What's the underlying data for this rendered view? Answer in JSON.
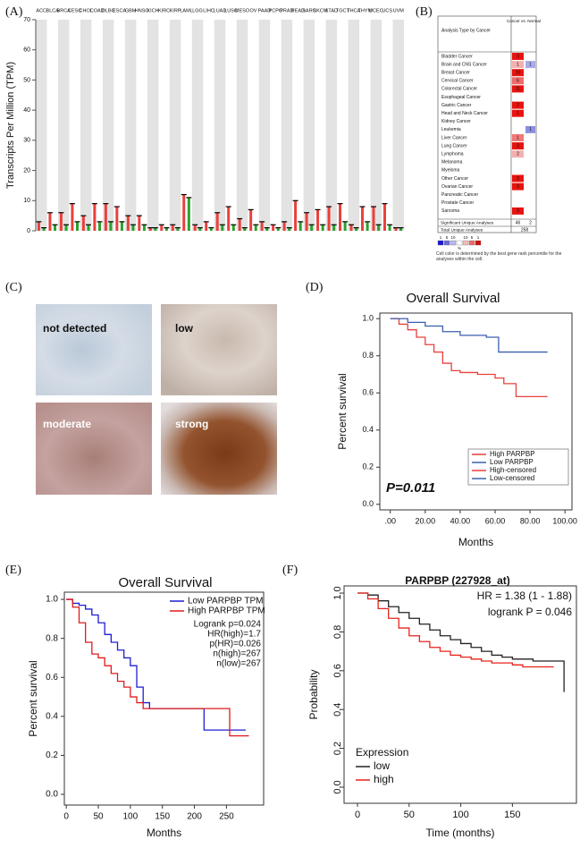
{
  "panel_labels": [
    "(A)",
    "(B)",
    "(C)",
    "(D)",
    "(E)",
    "(F)"
  ],
  "chart_data": [
    {
      "type": "dotplot",
      "ylabel": "Transcripts Per Million (TPM)",
      "categories": [
        "ACC",
        "BLCA",
        "BRCA",
        "CESC",
        "CHOL",
        "COAD",
        "DLBC",
        "ESCA",
        "GBM",
        "HNSC",
        "KICH",
        "KIRC",
        "KIRP",
        "LAML",
        "LGG",
        "LIHC",
        "LUAD",
        "LUSC",
        "MESO",
        "OV",
        "PAAD",
        "PCPG",
        "PRAD",
        "READ",
        "SARC",
        "SKCM",
        "STAD",
        "TGCT",
        "THCA",
        "THYM",
        "UCEC",
        "UCS",
        "UVM"
      ],
      "category_colors": [
        "#e8413c",
        "#e8413c",
        "#e8413c",
        "#e8413c",
        "#111111",
        "#e8413c",
        "#e8413c",
        "#111111",
        "#e8413c",
        "#111111",
        "#111111",
        "#111111",
        "#111111",
        "#111111",
        "#111111",
        "#e8413c",
        "#e8413c",
        "#e8413c",
        "#111111",
        "#e8413c",
        "#e8413c",
        "#111111",
        "#111111",
        "#e8413c",
        "#111111",
        "#111111",
        "#e8413c",
        "#e8413c",
        "#111111",
        "#e8413c",
        "#e8413c",
        "#e8413c",
        "#111111"
      ],
      "series": [
        {
          "color": "#e8413c",
          "values": [
            3,
            6,
            6,
            9,
            5,
            9,
            9,
            8,
            5,
            5,
            1,
            2,
            2,
            12,
            2,
            3,
            6,
            8,
            4,
            7,
            3,
            2,
            3,
            10,
            6,
            7,
            8,
            9,
            2,
            8,
            8,
            9,
            1
          ]
        },
        {
          "color": "#2ca02c",
          "values": [
            1,
            2,
            2,
            3,
            2,
            3,
            3,
            3,
            2,
            2,
            1,
            1,
            1,
            11,
            1,
            1,
            2,
            2,
            1,
            2,
            1,
            1,
            1,
            3,
            2,
            2,
            2,
            3,
            1,
            3,
            2,
            2,
            1
          ]
        }
      ],
      "ylim": [
        0,
        70
      ],
      "yticks": [
        0,
        10,
        20,
        30,
        40,
        50,
        60,
        70
      ]
    },
    {
      "type": "line",
      "step": true,
      "title": "Overall Survival",
      "xlabel": "Months",
      "ylabel": "Percent survival",
      "series": [
        {
          "name": "High PARPBP",
          "color": "#e8413c",
          "x": [
            0,
            5,
            10,
            15,
            20,
            25,
            30,
            35,
            40,
            45,
            50,
            55,
            60,
            65,
            70,
            72,
            80,
            90
          ],
          "values": [
            1,
            0.97,
            0.94,
            0.9,
            0.86,
            0.82,
            0.76,
            0.72,
            0.71,
            0.71,
            0.7,
            0.7,
            0.68,
            0.65,
            0.65,
            0.58,
            0.58,
            0.58
          ]
        },
        {
          "name": "Low PARPBP",
          "color": "#3a5fb0",
          "x": [
            0,
            10,
            20,
            30,
            40,
            50,
            55,
            60,
            62,
            70,
            80,
            90
          ],
          "values": [
            1,
            0.98,
            0.96,
            0.93,
            0.91,
            0.91,
            0.9,
            0.9,
            0.82,
            0.82,
            0.82,
            0.82
          ]
        }
      ],
      "extra_legend": [
        {
          "name": "High-censored",
          "color": "#e8413c"
        },
        {
          "name": "Low-censored",
          "color": "#3a5fb0"
        }
      ],
      "annotations": [
        "P=0.011"
      ],
      "legend": "lower right",
      "xlim": [
        -6,
        104
      ],
      "xticks": [
        {
          "value": 0,
          "label": ".00"
        },
        {
          "value": 20,
          "label": "20.00"
        },
        {
          "value": 40,
          "label": "40.00"
        },
        {
          "value": 60,
          "label": "60.00"
        },
        {
          "value": 80,
          "label": "80.00"
        },
        {
          "value": 100,
          "label": "100.00"
        }
      ],
      "ylim": [
        -0.03,
        1.03
      ],
      "yticks": [
        {
          "value": 0,
          "label": "0.0"
        },
        0.2,
        0.4,
        0.6,
        0.8,
        {
          "value": 1,
          "label": "1.0"
        }
      ]
    },
    {
      "type": "line",
      "step": true,
      "title": "Overall Survival",
      "xlabel": "Months",
      "ylabel": "Percent survival",
      "series": [
        {
          "name": "Low PARPBP TPM",
          "color": "#1f1fd0",
          "x": [
            0,
            10,
            20,
            30,
            40,
            50,
            60,
            70,
            80,
            90,
            100,
            110,
            120,
            130,
            140,
            215,
            240,
            280
          ],
          "values": [
            1,
            0.98,
            0.97,
            0.95,
            0.92,
            0.88,
            0.82,
            0.78,
            0.74,
            0.7,
            0.66,
            0.55,
            0.47,
            0.44,
            0.44,
            0.33,
            0.33,
            0.33
          ]
        },
        {
          "name": "High PARPBP TPM",
          "color": "#e01a1a",
          "x": [
            0,
            10,
            20,
            30,
            40,
            50,
            60,
            70,
            80,
            90,
            100,
            110,
            120,
            130,
            250,
            255,
            285
          ],
          "values": [
            1,
            0.96,
            0.88,
            0.78,
            0.72,
            0.7,
            0.66,
            0.62,
            0.58,
            0.55,
            0.5,
            0.47,
            0.44,
            0.44,
            0.44,
            0.3,
            0.3
          ]
        }
      ],
      "annotations": [
        "Logrank p=0.024",
        "HR(high)=1.7",
        "p(HR)=0.026",
        "n(high)=267",
        "n(low)=267"
      ],
      "legend": "upper right",
      "xlim": [
        -3,
        308
      ],
      "xticks": [
        0,
        50,
        100,
        150,
        200,
        250
      ],
      "ylim": [
        -0.055,
        1.037
      ],
      "yticks": [
        {
          "value": 0,
          "label": "0.0"
        },
        0.2,
        0.4,
        0.6,
        0.8,
        {
          "value": 1,
          "label": "1.0"
        }
      ]
    },
    {
      "type": "line",
      "step": true,
      "title": "PARPBP (227928_at)",
      "xlabel": "Time (months)",
      "ylabel": "Probability",
      "legend_title": "Expression",
      "series": [
        {
          "name": "low",
          "color": "#222222",
          "x": [
            0,
            10,
            20,
            30,
            40,
            50,
            60,
            70,
            80,
            90,
            100,
            110,
            120,
            130,
            140,
            150,
            160,
            170,
            180,
            190,
            200
          ],
          "values": [
            1,
            0.99,
            0.96,
            0.93,
            0.9,
            0.87,
            0.84,
            0.81,
            0.78,
            0.76,
            0.74,
            0.72,
            0.7,
            0.68,
            0.67,
            0.66,
            0.66,
            0.65,
            0.65,
            0.65,
            0.49
          ]
        },
        {
          "name": "high",
          "color": "#e8231c",
          "x": [
            0,
            10,
            20,
            30,
            40,
            50,
            60,
            70,
            80,
            90,
            100,
            110,
            120,
            130,
            140,
            150,
            160,
            170,
            180,
            190
          ],
          "values": [
            1,
            0.97,
            0.92,
            0.87,
            0.82,
            0.78,
            0.75,
            0.72,
            0.7,
            0.68,
            0.67,
            0.66,
            0.65,
            0.64,
            0.64,
            0.63,
            0.62,
            0.62,
            0.62,
            0.62
          ]
        }
      ],
      "annotations": [
        "HR = 1.38 (1 - 1.88)",
        "logrank P = 0.046"
      ],
      "legend": "lower left",
      "xlim": [
        -13,
        212
      ],
      "xticks": [
        0,
        50,
        100,
        150
      ],
      "ylim": [
        -0.083,
        1.037
      ],
      "yticks": [
        {
          "value": 0,
          "label": "0.0"
        },
        0.2,
        0.4,
        0.6,
        0.8,
        {
          "value": 1,
          "label": "1.0"
        }
      ]
    }
  ],
  "oncomine": {
    "header": "Analysis Type by Cancer",
    "column": "Cancer vs. Normal",
    "up_color": "#e8130f",
    "down_color": "#8c8fe0",
    "rows": [
      {
        "label": "Bladder Cancer",
        "up": 3,
        "down": null
      },
      {
        "label": "Brain and CNS Cancer",
        "up": 1,
        "down": 1,
        "up_color": "#f4b0b0",
        "down_color": "#a9ace8"
      },
      {
        "label": "Breast Cancer",
        "up": 10,
        "down": null
      },
      {
        "label": "Cervical Cancer",
        "up": 6,
        "down": null,
        "up_color": "#f06a6a"
      },
      {
        "label": "Colorectal Cancer",
        "up": 11,
        "down": null
      },
      {
        "label": "Esophageal Cancer",
        "up": null,
        "down": null
      },
      {
        "label": "Gastric Cancer",
        "up": 2,
        "down": null
      },
      {
        "label": "Head and Neck Cancer",
        "up": 1,
        "down": null
      },
      {
        "label": "Kidney Cancer",
        "up": null,
        "down": null
      },
      {
        "label": "Leukemia",
        "up": null,
        "down": 1
      },
      {
        "label": "Liver Cancer",
        "up": 1,
        "down": null,
        "up_color": "#f07a7a"
      },
      {
        "label": "Lung Cancer",
        "up": 3,
        "down": null
      },
      {
        "label": "Lymphoma",
        "up": 2,
        "down": null,
        "up_color": "#f4b0b0"
      },
      {
        "label": "Melanoma",
        "up": null,
        "down": null
      },
      {
        "label": "Myeloma",
        "up": null,
        "down": null
      },
      {
        "label": "Other Cancer",
        "up": 3,
        "down": null
      },
      {
        "label": "Ovarian Cancer",
        "up": 3,
        "down": null
      },
      {
        "label": "Pancreatic Cancer",
        "up": null,
        "down": null
      },
      {
        "label": "Prostate Cancer",
        "up": null,
        "down": null
      },
      {
        "label": "Sarcoma",
        "up": 3,
        "down": null
      }
    ],
    "significant": {
      "label": "Significant Unique Analyses",
      "up": 46,
      "down": 2
    },
    "total": {
      "label": "Total Unique Analyses",
      "value": 258
    },
    "legend_ticks": [
      1,
      5,
      10,
      10,
      5,
      1
    ],
    "legend_colors": [
      "#1a1ad0",
      "#6a6ae0",
      "#b8b8f0",
      "#f4b8b8",
      "#ee6a6a",
      "#d01010"
    ],
    "legend_unit": "%",
    "note": "Cell color is determined by the best gene rank percentile for the analyses within the cell."
  },
  "ihc": {
    "labels": [
      "not detected",
      "low",
      "moderate",
      "strong"
    ]
  }
}
